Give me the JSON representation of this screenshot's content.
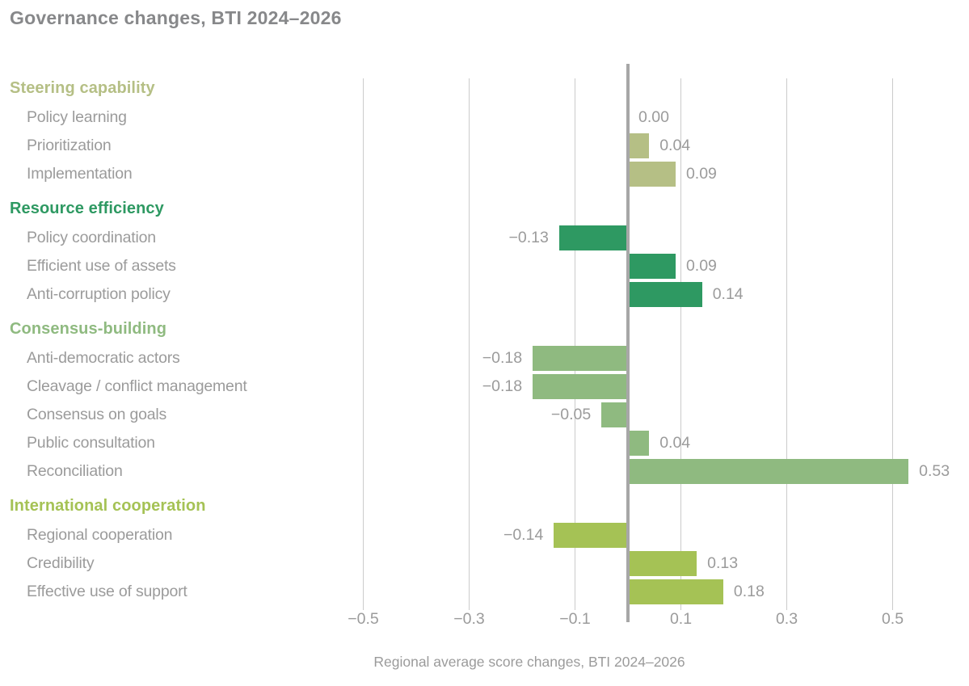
{
  "title": "Governance changes, BTI 2024–2026",
  "chart_data": {
    "type": "bar",
    "orientation": "horizontal",
    "title": "Governance changes, BTI 2024–2026",
    "xlabel": "Regional average score changes, BTI 2024–2026",
    "xlim": [
      -0.5,
      0.5
    ],
    "x_ticks": [
      -0.5,
      -0.3,
      -0.1,
      0.1,
      0.3,
      0.5
    ],
    "x_tick_labels": [
      "−0.5",
      "−0.3",
      "−0.1",
      "0.1",
      "0.3",
      "0.5"
    ],
    "grid": true,
    "zero_line": true,
    "groups": [
      {
        "label": "Steering capability",
        "color": "#b5bf85",
        "items": [
          {
            "label": "Policy learning",
            "value": 0.0,
            "value_label": "0.00"
          },
          {
            "label": "Prioritization",
            "value": 0.04,
            "value_label": "0.04"
          },
          {
            "label": "Implementation",
            "value": 0.09,
            "value_label": "0.09"
          }
        ]
      },
      {
        "label": "Resource efficiency",
        "color": "#2e9962",
        "items": [
          {
            "label": "Policy coordination",
            "value": -0.13,
            "value_label": "−0.13"
          },
          {
            "label": "Efficient use of assets",
            "value": 0.09,
            "value_label": "0.09"
          },
          {
            "label": "Anti-corruption policy",
            "value": 0.14,
            "value_label": "0.14"
          }
        ]
      },
      {
        "label": "Consensus-building",
        "color": "#8fba80",
        "items": [
          {
            "label": "Anti-democratic actors",
            "value": -0.18,
            "value_label": "−0.18"
          },
          {
            "label": "Cleavage / conflict management",
            "value": -0.18,
            "value_label": "−0.18"
          },
          {
            "label": "Consensus on goals",
            "value": -0.05,
            "value_label": "−0.05"
          },
          {
            "label": "Public consultation",
            "value": 0.04,
            "value_label": "0.04"
          },
          {
            "label": "Reconciliation",
            "value": 0.53,
            "value_label": "0.53"
          }
        ]
      },
      {
        "label": "International cooperation",
        "color": "#a5c255",
        "items": [
          {
            "label": "Regional cooperation",
            "value": -0.14,
            "value_label": "−0.14"
          },
          {
            "label": "Credibility",
            "value": 0.13,
            "value_label": "0.13"
          },
          {
            "label": "Effective use of support",
            "value": 0.18,
            "value_label": "0.18"
          }
        ]
      }
    ]
  },
  "colors": {
    "title_text": "#87888a",
    "item_text": "#9b9b9b",
    "value_text": "#9b9b9b",
    "gridline": "#cbcbcb",
    "zero_line": "#a7a7a7",
    "background": "#ffffff"
  }
}
